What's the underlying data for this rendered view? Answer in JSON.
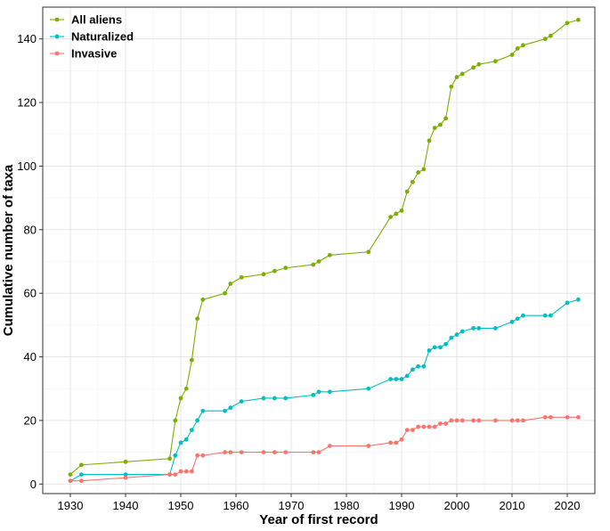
{
  "chart_data": {
    "type": "line",
    "title": "",
    "xlabel": "Year of first record",
    "ylabel": "Cumulative number of taxa",
    "xlim": [
      1925,
      2025
    ],
    "ylim": [
      -3,
      150
    ],
    "xticks": [
      1930,
      1940,
      1950,
      1960,
      1970,
      1980,
      1990,
      2000,
      2010,
      2020
    ],
    "yticks": [
      0,
      20,
      40,
      60,
      80,
      100,
      120,
      140
    ],
    "grid": true,
    "legend_position": "top-left",
    "series": [
      {
        "name": "All aliens",
        "color": "#7cae00",
        "points": [
          [
            1930,
            3
          ],
          [
            1932,
            6
          ],
          [
            1940,
            7
          ],
          [
            1948,
            8
          ],
          [
            1949,
            20
          ],
          [
            1950,
            27
          ],
          [
            1951,
            30
          ],
          [
            1952,
            39
          ],
          [
            1953,
            52
          ],
          [
            1954,
            58
          ],
          [
            1958,
            60
          ],
          [
            1959,
            63
          ],
          [
            1961,
            65
          ],
          [
            1965,
            66
          ],
          [
            1967,
            67
          ],
          [
            1969,
            68
          ],
          [
            1974,
            69
          ],
          [
            1975,
            70
          ],
          [
            1977,
            72
          ],
          [
            1984,
            73
          ],
          [
            1988,
            84
          ],
          [
            1989,
            85
          ],
          [
            1990,
            86
          ],
          [
            1991,
            92
          ],
          [
            1992,
            95
          ],
          [
            1993,
            98
          ],
          [
            1994,
            99
          ],
          [
            1995,
            108
          ],
          [
            1996,
            112
          ],
          [
            1997,
            113
          ],
          [
            1998,
            115
          ],
          [
            1999,
            125
          ],
          [
            2000,
            128
          ],
          [
            2001,
            129
          ],
          [
            2003,
            131
          ],
          [
            2004,
            132
          ],
          [
            2007,
            133
          ],
          [
            2010,
            135
          ],
          [
            2011,
            137
          ],
          [
            2012,
            138
          ],
          [
            2016,
            140
          ],
          [
            2017,
            141
          ],
          [
            2020,
            145
          ],
          [
            2022,
            146
          ]
        ]
      },
      {
        "name": "Naturalized",
        "color": "#00bfc4",
        "points": [
          [
            1930,
            1
          ],
          [
            1932,
            3
          ],
          [
            1940,
            3
          ],
          [
            1948,
            3
          ],
          [
            1949,
            9
          ],
          [
            1950,
            13
          ],
          [
            1951,
            14
          ],
          [
            1952,
            17
          ],
          [
            1953,
            20
          ],
          [
            1954,
            23
          ],
          [
            1958,
            23
          ],
          [
            1959,
            24
          ],
          [
            1961,
            26
          ],
          [
            1965,
            27
          ],
          [
            1967,
            27
          ],
          [
            1969,
            27
          ],
          [
            1974,
            28
          ],
          [
            1975,
            29
          ],
          [
            1977,
            29
          ],
          [
            1984,
            30
          ],
          [
            1988,
            33
          ],
          [
            1989,
            33
          ],
          [
            1990,
            33
          ],
          [
            1991,
            34
          ],
          [
            1992,
            36
          ],
          [
            1993,
            37
          ],
          [
            1994,
            37
          ],
          [
            1995,
            42
          ],
          [
            1996,
            43
          ],
          [
            1997,
            43
          ],
          [
            1998,
            44
          ],
          [
            1999,
            46
          ],
          [
            2000,
            47
          ],
          [
            2001,
            48
          ],
          [
            2003,
            49
          ],
          [
            2004,
            49
          ],
          [
            2007,
            49
          ],
          [
            2010,
            51
          ],
          [
            2011,
            52
          ],
          [
            2012,
            53
          ],
          [
            2016,
            53
          ],
          [
            2017,
            53
          ],
          [
            2020,
            57
          ],
          [
            2022,
            58
          ]
        ]
      },
      {
        "name": "Invasive",
        "color": "#f8766d",
        "points": [
          [
            1930,
            1
          ],
          [
            1932,
            1
          ],
          [
            1940,
            2
          ],
          [
            1948,
            3
          ],
          [
            1949,
            3
          ],
          [
            1950,
            4
          ],
          [
            1951,
            4
          ],
          [
            1952,
            4
          ],
          [
            1953,
            9
          ],
          [
            1954,
            9
          ],
          [
            1958,
            10
          ],
          [
            1959,
            10
          ],
          [
            1961,
            10
          ],
          [
            1965,
            10
          ],
          [
            1967,
            10
          ],
          [
            1969,
            10
          ],
          [
            1974,
            10
          ],
          [
            1975,
            10
          ],
          [
            1977,
            12
          ],
          [
            1984,
            12
          ],
          [
            1988,
            13
          ],
          [
            1989,
            13
          ],
          [
            1990,
            14
          ],
          [
            1991,
            17
          ],
          [
            1992,
            17
          ],
          [
            1993,
            18
          ],
          [
            1994,
            18
          ],
          [
            1995,
            18
          ],
          [
            1996,
            18
          ],
          [
            1997,
            19
          ],
          [
            1998,
            19
          ],
          [
            1999,
            20
          ],
          [
            2000,
            20
          ],
          [
            2001,
            20
          ],
          [
            2003,
            20
          ],
          [
            2004,
            20
          ],
          [
            2007,
            20
          ],
          [
            2010,
            20
          ],
          [
            2011,
            20
          ],
          [
            2012,
            20
          ],
          [
            2016,
            21
          ],
          [
            2017,
            21
          ],
          [
            2020,
            21
          ],
          [
            2022,
            21
          ]
        ]
      }
    ]
  }
}
